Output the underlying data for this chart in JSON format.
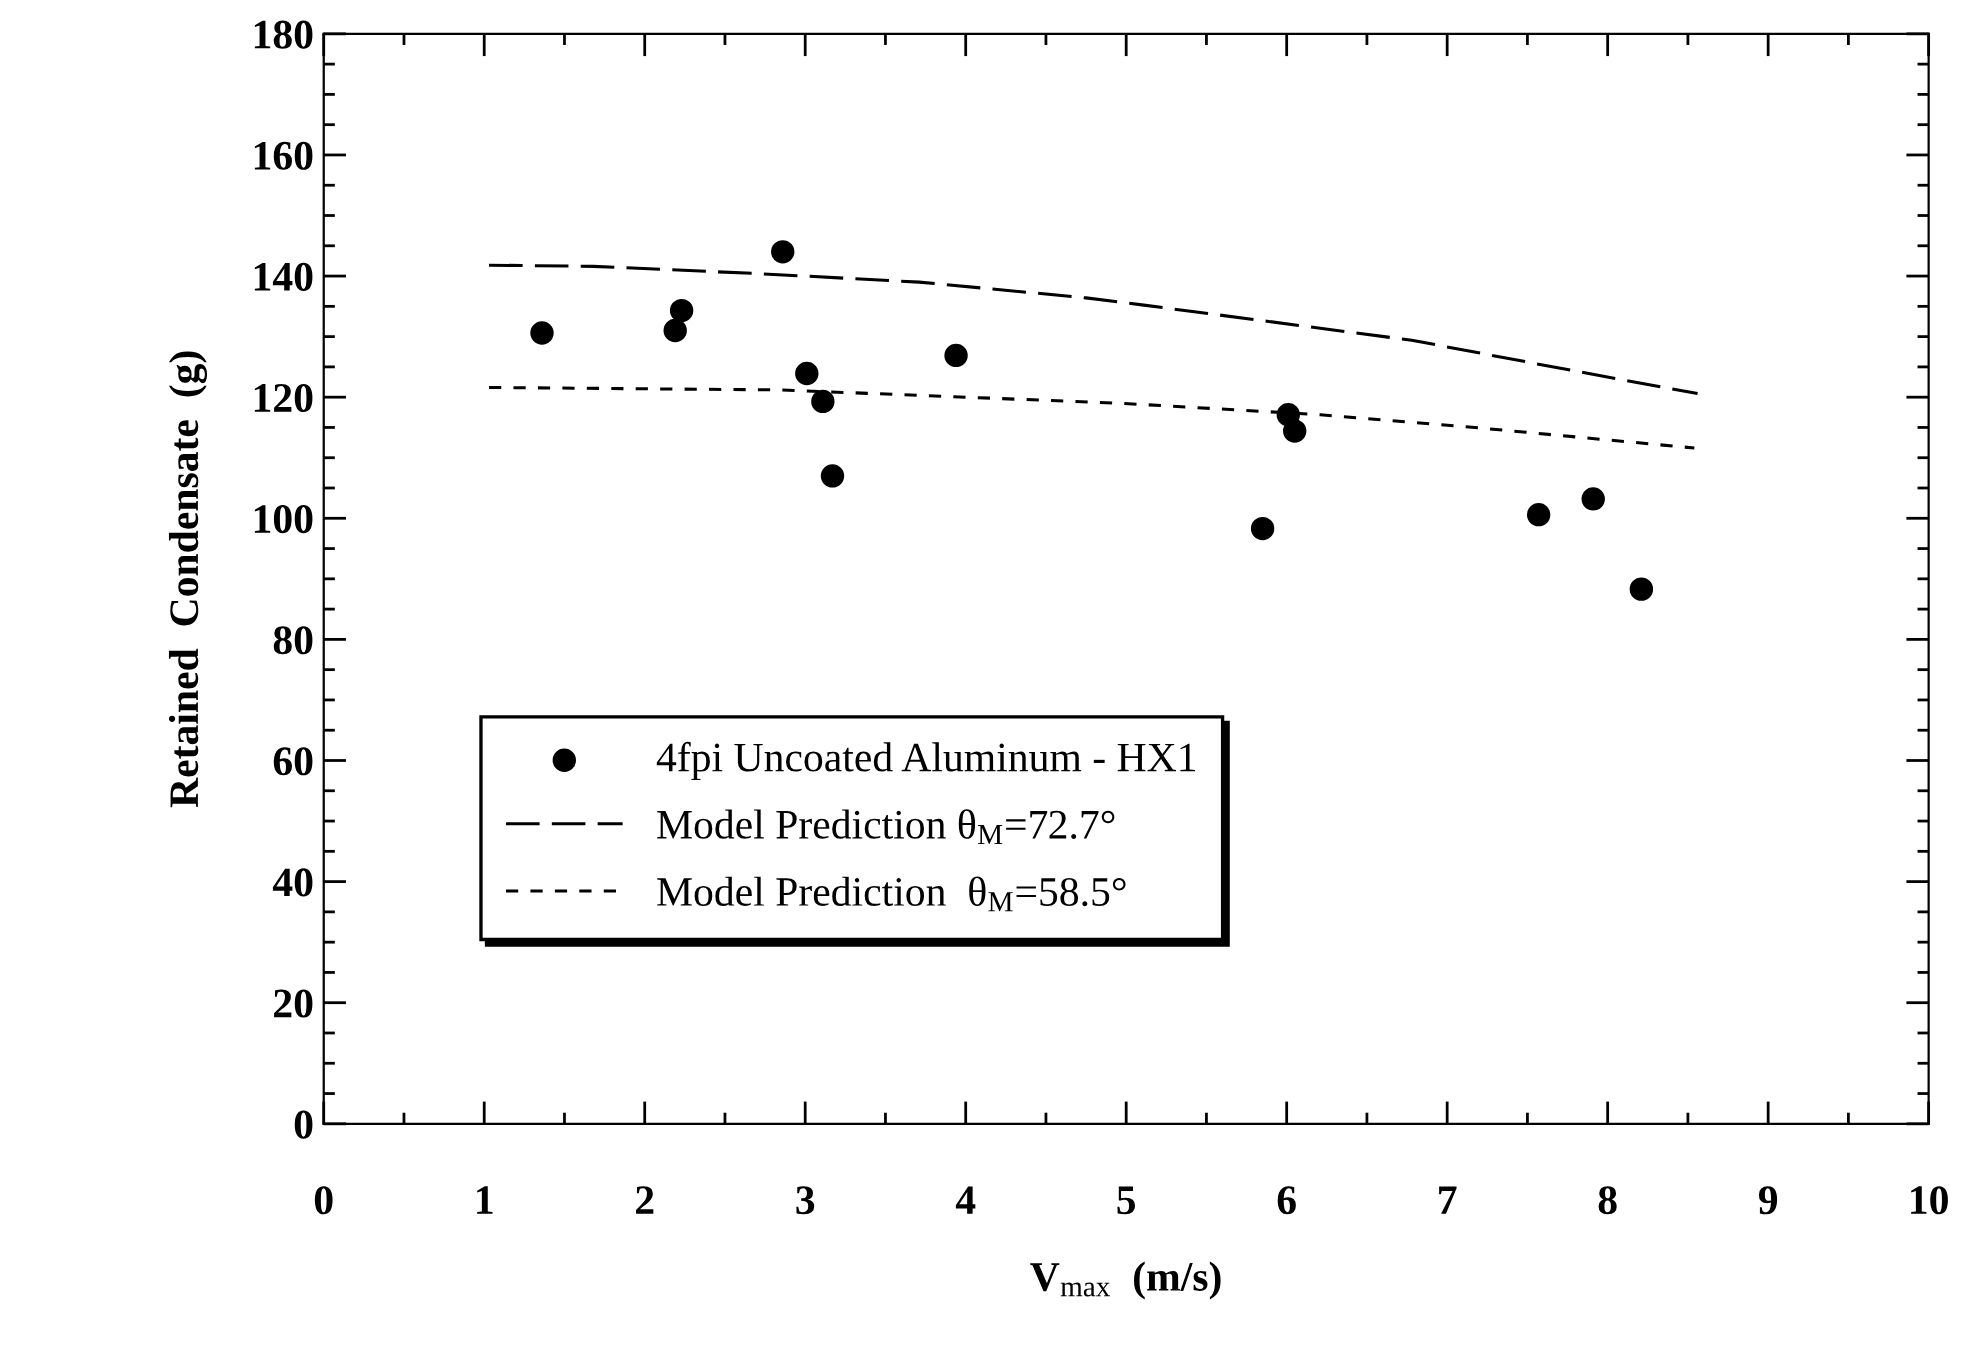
{
  "chart_data": {
    "type": "scatter",
    "xlabel": "V$_{max}$  (m/s)",
    "ylabel": "Retained  Condensate  (g)",
    "xlim": [
      0,
      10
    ],
    "ylim": [
      0,
      180
    ],
    "xticks": [
      0,
      {
        "value": 0.5,
        "label": null
      },
      1,
      {
        "value": 1.5,
        "label": null
      },
      2,
      {
        "value": 2.5,
        "label": null
      },
      3,
      {
        "value": 3.5,
        "label": null
      },
      4,
      {
        "value": 4.5,
        "label": null
      },
      5,
      {
        "value": 5.5,
        "label": null
      },
      6,
      {
        "value": 6.5,
        "label": null
      },
      7,
      {
        "value": 7.5,
        "label": null
      },
      8,
      {
        "value": 8.5,
        "label": null
      },
      9,
      {
        "value": 9.5,
        "label": null
      },
      10
    ],
    "yticks": [
      0,
      {
        "value": 5,
        "label": null
      },
      {
        "value": 10,
        "label": null
      },
      {
        "value": 15,
        "label": null
      },
      20,
      {
        "value": 25,
        "label": null
      },
      {
        "value": 30,
        "label": null
      },
      {
        "value": 35,
        "label": null
      },
      40,
      {
        "value": 45,
        "label": null
      },
      {
        "value": 50,
        "label": null
      },
      {
        "value": 55,
        "label": null
      },
      60,
      {
        "value": 65,
        "label": null
      },
      {
        "value": 70,
        "label": null
      },
      {
        "value": 75,
        "label": null
      },
      80,
      {
        "value": 85,
        "label": null
      },
      {
        "value": 90,
        "label": null
      },
      {
        "value": 95,
        "label": null
      },
      100,
      {
        "value": 105,
        "label": null
      },
      {
        "value": 110,
        "label": null
      },
      {
        "value": 115,
        "label": null
      },
      120,
      {
        "value": 125,
        "label": null
      },
      {
        "value": 130,
        "label": null
      },
      {
        "value": 135,
        "label": null
      },
      140,
      {
        "value": 145,
        "label": null
      },
      {
        "value": 150,
        "label": null
      },
      {
        "value": 155,
        "label": null
      },
      160,
      {
        "value": 165,
        "label": null
      },
      {
        "value": 170,
        "label": null
      },
      {
        "value": 175,
        "label": null
      },
      180
    ],
    "grid": false,
    "legend": "bottom left",
    "series": [
      {
        "name": "4fpi Uncoated Aluminum - HX1",
        "color": "#000000",
        "marker": "circle",
        "x": [
          1.36,
          2.19,
          2.23,
          2.86,
          3.01,
          3.11,
          3.17,
          3.94,
          5.85,
          6.01,
          6.05,
          7.57,
          7.91,
          8.21
        ],
        "values": [
          130.6,
          131,
          134.3,
          144,
          123.9,
          119.3,
          107,
          126.9,
          98.3,
          117.1,
          114.4,
          100.6,
          103.2,
          88.3
        ]
      },
      {
        "name": "Model Prediction θ$_{M}$=72.7°",
        "type": "line",
        "color": "#000000",
        "line_style": "dashed",
        "marker": "none",
        "x": [
          1.03,
          1.68,
          2.71,
          3.71,
          4.75,
          5.11,
          6.78,
          7.82,
          8.56
        ],
        "values": [
          141.8,
          141.6,
          140.4,
          139,
          136.4,
          135.2,
          129.4,
          124.2,
          120.6
        ]
      },
      {
        "name": "Model Prediction  θ$_{M}$=58.5°",
        "type": "line",
        "color": "#000000",
        "line_style": "dotted",
        "marker": "none",
        "x": [
          1.03,
          2.84,
          4.96,
          6.21,
          7.21,
          8.54
        ],
        "values": [
          121.6,
          121.2,
          119,
          117.1,
          114.9,
          111.6
        ]
      }
    ]
  }
}
